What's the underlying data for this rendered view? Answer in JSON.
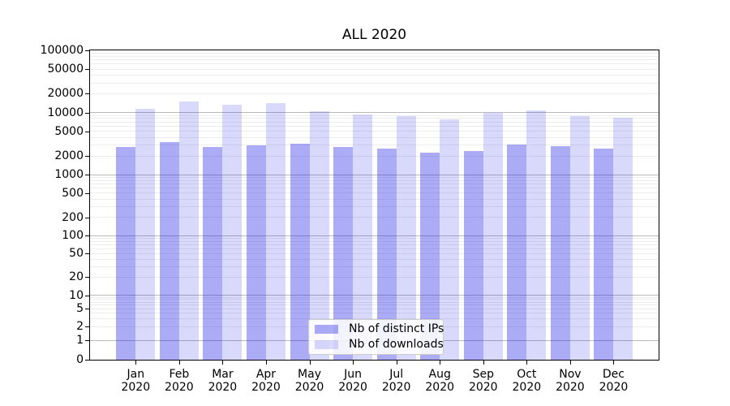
{
  "title": "ALL 2020",
  "chart_data": {
    "type": "bar",
    "title": "ALL 2020",
    "categories": [
      "Jan",
      "Feb",
      "Mar",
      "Apr",
      "May",
      "Jun",
      "Jul",
      "Aug",
      "Sep",
      "Oct",
      "Nov",
      "Dec"
    ],
    "category_year": "2020",
    "series": [
      {
        "name": "Nb of distinct IPs",
        "color": "rgba(30,30,230,0.37)",
        "values": [
          2800,
          3300,
          2830,
          3000,
          3200,
          2830,
          2650,
          2250,
          2400,
          3050,
          2900,
          2600
        ]
      },
      {
        "name": "Nb of downloads",
        "color": "rgba(30,30,230,0.17)",
        "values": [
          11400,
          15200,
          13300,
          14300,
          10600,
          9200,
          8800,
          7800,
          9900,
          10800,
          8700,
          8200
        ]
      }
    ],
    "yticks": [
      0,
      1,
      2,
      5,
      10,
      20,
      50,
      100,
      200,
      500,
      1000,
      2000,
      5000,
      10000,
      20000,
      50000,
      100000
    ],
    "ylim": [
      0,
      100000
    ],
    "yscale": "symlog",
    "grid": {
      "orientation": "horizontal",
      "major_color": "#b9b9b9",
      "minor_color": "#ececec"
    },
    "legend": {
      "position": "lower center",
      "items": [
        "Nb of distinct IPs",
        "Nb of downloads"
      ]
    },
    "axis_color": "#000000",
    "background": "#ffffff"
  }
}
